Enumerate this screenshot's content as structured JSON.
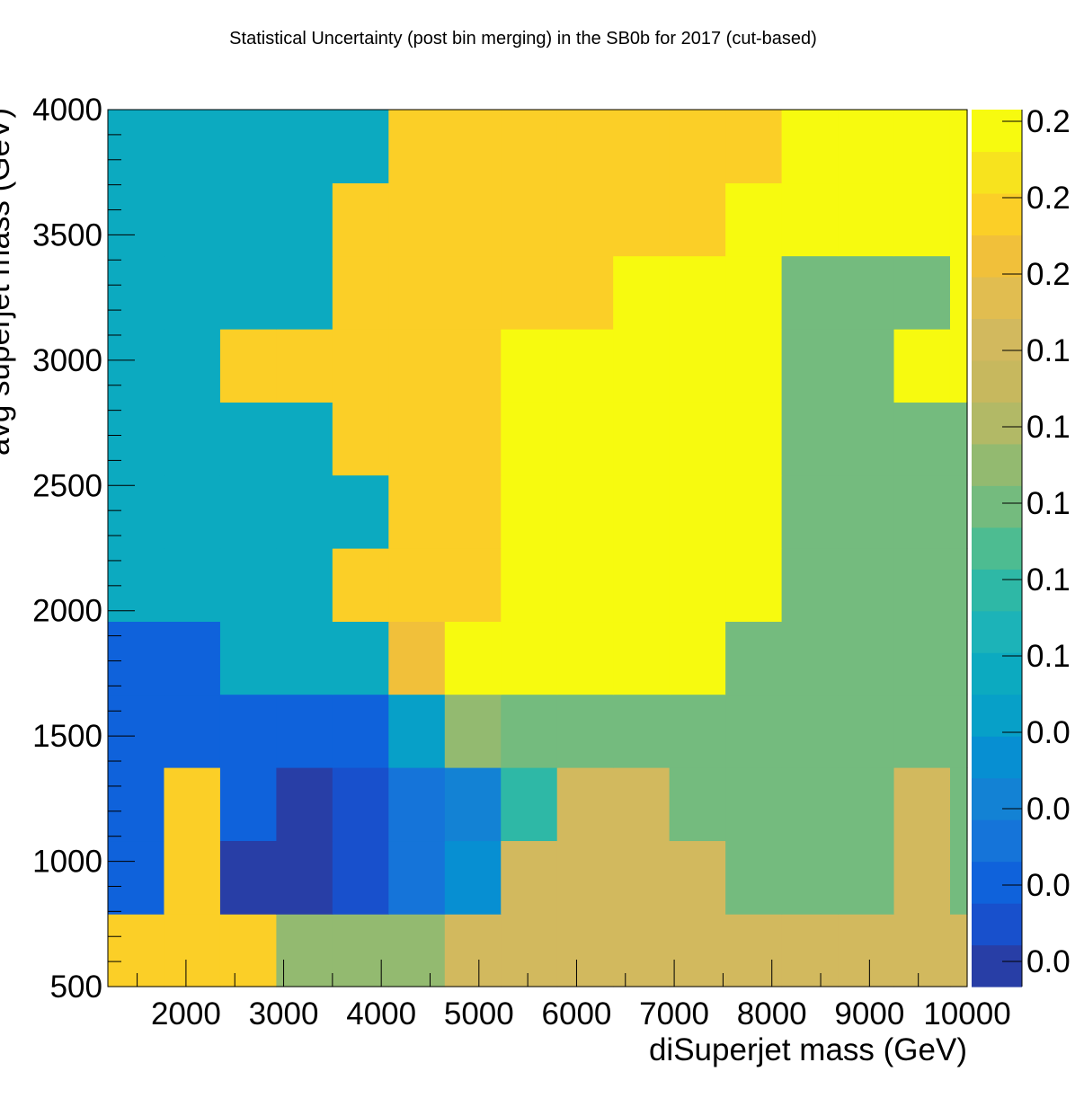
{
  "chart_data": {
    "type": "heatmap",
    "title": "Statistical Uncertainty (post bin merging) in the SB0b for 2017 (cut-based)",
    "xlabel": "diSuperjet mass (GeV)",
    "ylabel": "avg superjet mass (GeV)",
    "xlim": [
      1200,
      10000
    ],
    "ylim": [
      500,
      4000
    ],
    "x_tick_labels": [
      "2000",
      "3000",
      "4000",
      "5000",
      "6000",
      "7000",
      "8000",
      "9000",
      "10000"
    ],
    "y_tick_labels": [
      "500",
      "1000",
      "1500",
      "2000",
      "2500",
      "3000",
      "3500",
      "4000"
    ],
    "palette_labels": [
      "0.0",
      "0.0",
      "0.0",
      "0.0",
      "0.1",
      "0.1",
      "0.1",
      "0.1",
      "0.1",
      "0.2",
      "0.2",
      "0.2"
    ],
    "x_edges": [
      1200,
      1775,
      2350,
      2925,
      3500,
      4075,
      4650,
      5225,
      5800,
      6375,
      6950,
      7525,
      8100,
      8675,
      9250,
      9825,
      10000
    ],
    "y_edges": [
      500,
      790,
      1083,
      1375,
      1667,
      1958,
      2250,
      2542,
      2833,
      3125,
      3417,
      3708,
      4000
    ],
    "palette_colors": [
      "#283ea6",
      "#1850cc",
      "#0f62db",
      "#1574d9",
      "#1382d4",
      "#078fd2",
      "#07a0c8",
      "#0caac0",
      "#1cb3b8",
      "#2eb8a6",
      "#4dbc91",
      "#74bb7e",
      "#93ba70",
      "#b2b966",
      "#c7b85e",
      "#d2b95e",
      "#e1bd50",
      "#f1c03a",
      "#fbcf27",
      "#f7e31e",
      "#f7fa0f"
    ],
    "values": [
      [
        18,
        18,
        18,
        12,
        12,
        12,
        15,
        15,
        15,
        15,
        15,
        15,
        15,
        15,
        15,
        15
      ],
      [
        2,
        18,
        0,
        0,
        1,
        3,
        5,
        15,
        15,
        15,
        15,
        11,
        11,
        11,
        15,
        11
      ],
      [
        2,
        18,
        2,
        0,
        1,
        3,
        4,
        9,
        15,
        15,
        11,
        11,
        11,
        11,
        15,
        11
      ],
      [
        2,
        2,
        2,
        2,
        2,
        6,
        12,
        11,
        11,
        11,
        11,
        11,
        11,
        11,
        11,
        11
      ],
      [
        2,
        2,
        7,
        7,
        7,
        17,
        20,
        20,
        20,
        20,
        20,
        11,
        11,
        11,
        11,
        11
      ],
      [
        7,
        7,
        7,
        7,
        18,
        18,
        18,
        20,
        20,
        20,
        20,
        20,
        11,
        11,
        11,
        11
      ],
      [
        7,
        7,
        7,
        7,
        7,
        18,
        18,
        20,
        20,
        20,
        20,
        20,
        11,
        11,
        11,
        11
      ],
      [
        7,
        7,
        7,
        7,
        18,
        18,
        18,
        20,
        20,
        20,
        20,
        20,
        11,
        11,
        11,
        11
      ],
      [
        7,
        7,
        18,
        18,
        18,
        18,
        18,
        20,
        20,
        20,
        20,
        20,
        11,
        11,
        20,
        20
      ],
      [
        7,
        7,
        7,
        7,
        18,
        18,
        18,
        18,
        18,
        20,
        20,
        20,
        11,
        11,
        11,
        20
      ],
      [
        7,
        7,
        7,
        7,
        18,
        18,
        18,
        18,
        18,
        18,
        18,
        20,
        20,
        20,
        20,
        20
      ],
      [
        7,
        7,
        7,
        7,
        7,
        18,
        18,
        18,
        18,
        18,
        18,
        18,
        20,
        20,
        20,
        20
      ]
    ]
  }
}
